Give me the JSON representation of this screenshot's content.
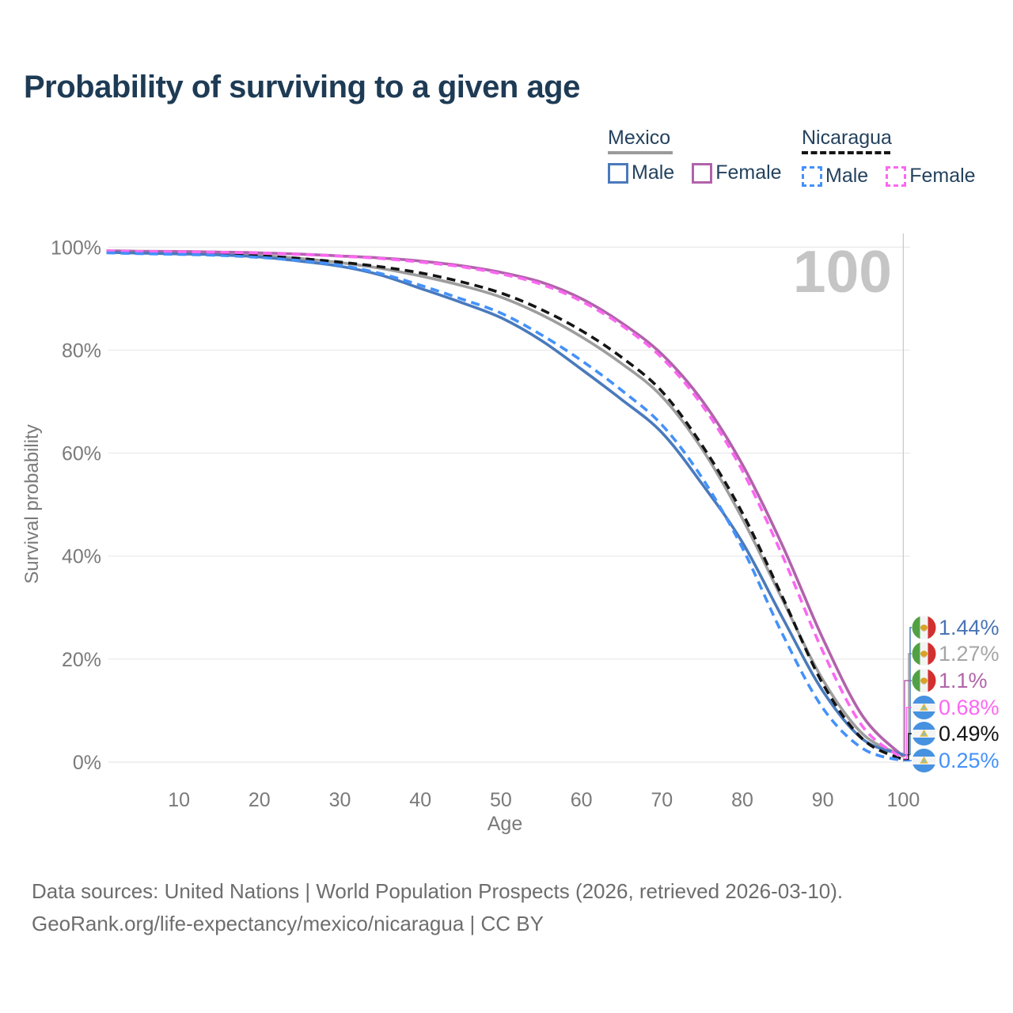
{
  "title": "Probability of surviving to a given age",
  "watermark": "100",
  "legend": {
    "mexico": {
      "label": "Mexico",
      "male": "Male",
      "female": "Female"
    },
    "nicaragua": {
      "label": "Nicaragua",
      "male": "Male",
      "female": "Female"
    }
  },
  "axes": {
    "y_label": "Survival probability",
    "x_label": "Age",
    "y_ticks": [
      {
        "value": 0,
        "label": "0%"
      },
      {
        "value": 20,
        "label": "20%"
      },
      {
        "value": 40,
        "label": "40%"
      },
      {
        "value": 60,
        "label": "60%"
      },
      {
        "value": 80,
        "label": "80%"
      },
      {
        "value": 100,
        "label": "100%"
      }
    ],
    "x_ticks": [
      {
        "age": 10,
        "label": "10"
      },
      {
        "age": 20,
        "label": "20"
      },
      {
        "age": 30,
        "label": "30"
      },
      {
        "age": 40,
        "label": "40"
      },
      {
        "age": 50,
        "label": "50"
      },
      {
        "age": 60,
        "label": "60"
      },
      {
        "age": 70,
        "label": "70"
      },
      {
        "age": 80,
        "label": "80"
      },
      {
        "age": 90,
        "label": "90"
      },
      {
        "age": 100,
        "label": "100"
      }
    ]
  },
  "footer": {
    "line1": "Data sources: United Nations | World Population Prospects (2026, retrieved 2026-03-10).",
    "line2": "GeoRank.org/life-expectancy/mexico/nicaragua | CC BY"
  },
  "colors": {
    "title_text": "#1e3b55",
    "axis_text": "#7a7a7a",
    "gridline": "#ebebeb",
    "crosshair": "#c8c8c8",
    "watermark": "#c5c5c5",
    "mexico_male": "#4a7abc",
    "mexico_female": "#b163ab",
    "mexico_both": "#9d9d9d",
    "nicaragua_male": "#4491fa",
    "nicaragua_female": "#fc67f2",
    "nicaragua_both": "#141414"
  },
  "chart_data": {
    "type": "line",
    "title": "Probability of surviving to a given age",
    "xlabel": "Age",
    "ylabel": "Survival probability",
    "x_range": [
      1,
      100
    ],
    "y_range_percent": [
      0,
      100
    ],
    "grid": "horizontal",
    "legend_position": "top-right",
    "hover_age": 100,
    "ages": [
      1,
      5,
      10,
      15,
      20,
      25,
      30,
      35,
      40,
      45,
      50,
      55,
      60,
      65,
      70,
      75,
      80,
      85,
      90,
      95,
      100
    ],
    "series": [
      {
        "name": "Mexico Both sexes",
        "country": "Mexico",
        "sex": "Both",
        "style": "solid",
        "color": "#9d9d9d",
        "label_row": 1,
        "end_value": "1.27%",
        "values": [
          99.15,
          99.0,
          98.9,
          98.7,
          98.4,
          97.8,
          97.0,
          95.9,
          94.4,
          92.6,
          90.3,
          86.9,
          82.6,
          77.4,
          71.0,
          60.8,
          47.3,
          31.5,
          16.0,
          5.4,
          1.27
        ]
      },
      {
        "name": "Mexico Female",
        "country": "Mexico",
        "sex": "Female",
        "style": "solid",
        "color": "#b163ab",
        "label_row": 2,
        "end_value": "1.1%",
        "values": [
          99.3,
          99.2,
          99.15,
          99.05,
          98.9,
          98.65,
          98.3,
          97.9,
          97.3,
          96.4,
          95.1,
          93.2,
          90.0,
          85.3,
          79.2,
          70.2,
          57.8,
          42.0,
          24.0,
          8.8,
          1.1
        ]
      },
      {
        "name": "Mexico Male",
        "country": "Mexico",
        "sex": "Male",
        "style": "solid",
        "color": "#4a7abc",
        "label_row": 0,
        "end_value": "1.44%",
        "values": [
          99.0,
          98.85,
          98.7,
          98.5,
          98.1,
          97.3,
          96.3,
          94.6,
          92.0,
          89.3,
          86.3,
          81.9,
          76.3,
          70.4,
          64.0,
          54.0,
          42.7,
          28.0,
          13.8,
          4.4,
          1.44
        ]
      },
      {
        "name": "Nicaragua Both sexes",
        "country": "Nicaragua",
        "sex": "Both",
        "style": "dashed",
        "color": "#141414",
        "label_row": 4,
        "end_value": "0.49%",
        "values": [
          99.1,
          98.95,
          98.8,
          98.6,
          98.3,
          97.8,
          97.1,
          96.2,
          95.0,
          93.3,
          91.1,
          87.9,
          83.8,
          78.6,
          72.0,
          61.5,
          48.4,
          32.0,
          15.2,
          4.4,
          0.49
        ]
      },
      {
        "name": "Nicaragua Female",
        "country": "Nicaragua",
        "sex": "Female",
        "style": "dashed",
        "color": "#fc67f2",
        "label_row": 3,
        "end_value": "0.68%",
        "values": [
          99.25,
          99.15,
          99.1,
          99.0,
          98.85,
          98.6,
          98.25,
          97.8,
          97.1,
          96.2,
          94.8,
          92.8,
          89.5,
          84.8,
          78.5,
          69.3,
          56.6,
          40.0,
          21.5,
          6.8,
          0.68
        ]
      },
      {
        "name": "Nicaragua Male",
        "country": "Nicaragua",
        "sex": "Male",
        "style": "dashed",
        "color": "#4491fa",
        "label_row": 5,
        "end_value": "0.25%",
        "values": [
          98.9,
          98.75,
          98.6,
          98.4,
          98.0,
          97.4,
          96.5,
          94.9,
          92.6,
          90.0,
          87.2,
          83.0,
          78.0,
          72.2,
          65.5,
          55.2,
          41.6,
          24.8,
          10.5,
          2.6,
          0.25
        ]
      }
    ],
    "end_labels": [
      {
        "value": "1.44%",
        "color": "#4a74b4",
        "flag": "mexico"
      },
      {
        "value": "1.27%",
        "color": "#a6a6a6",
        "flag": "mexico"
      },
      {
        "value": "1.1%",
        "color": "#b065a8",
        "flag": "mexico"
      },
      {
        "value": "0.68%",
        "color": "#fc67f2",
        "flag": "nicaragua"
      },
      {
        "value": "0.49%",
        "color": "#141414",
        "flag": "nicaragua"
      },
      {
        "value": "0.25%",
        "color": "#4491fa",
        "flag": "nicaragua"
      }
    ]
  }
}
